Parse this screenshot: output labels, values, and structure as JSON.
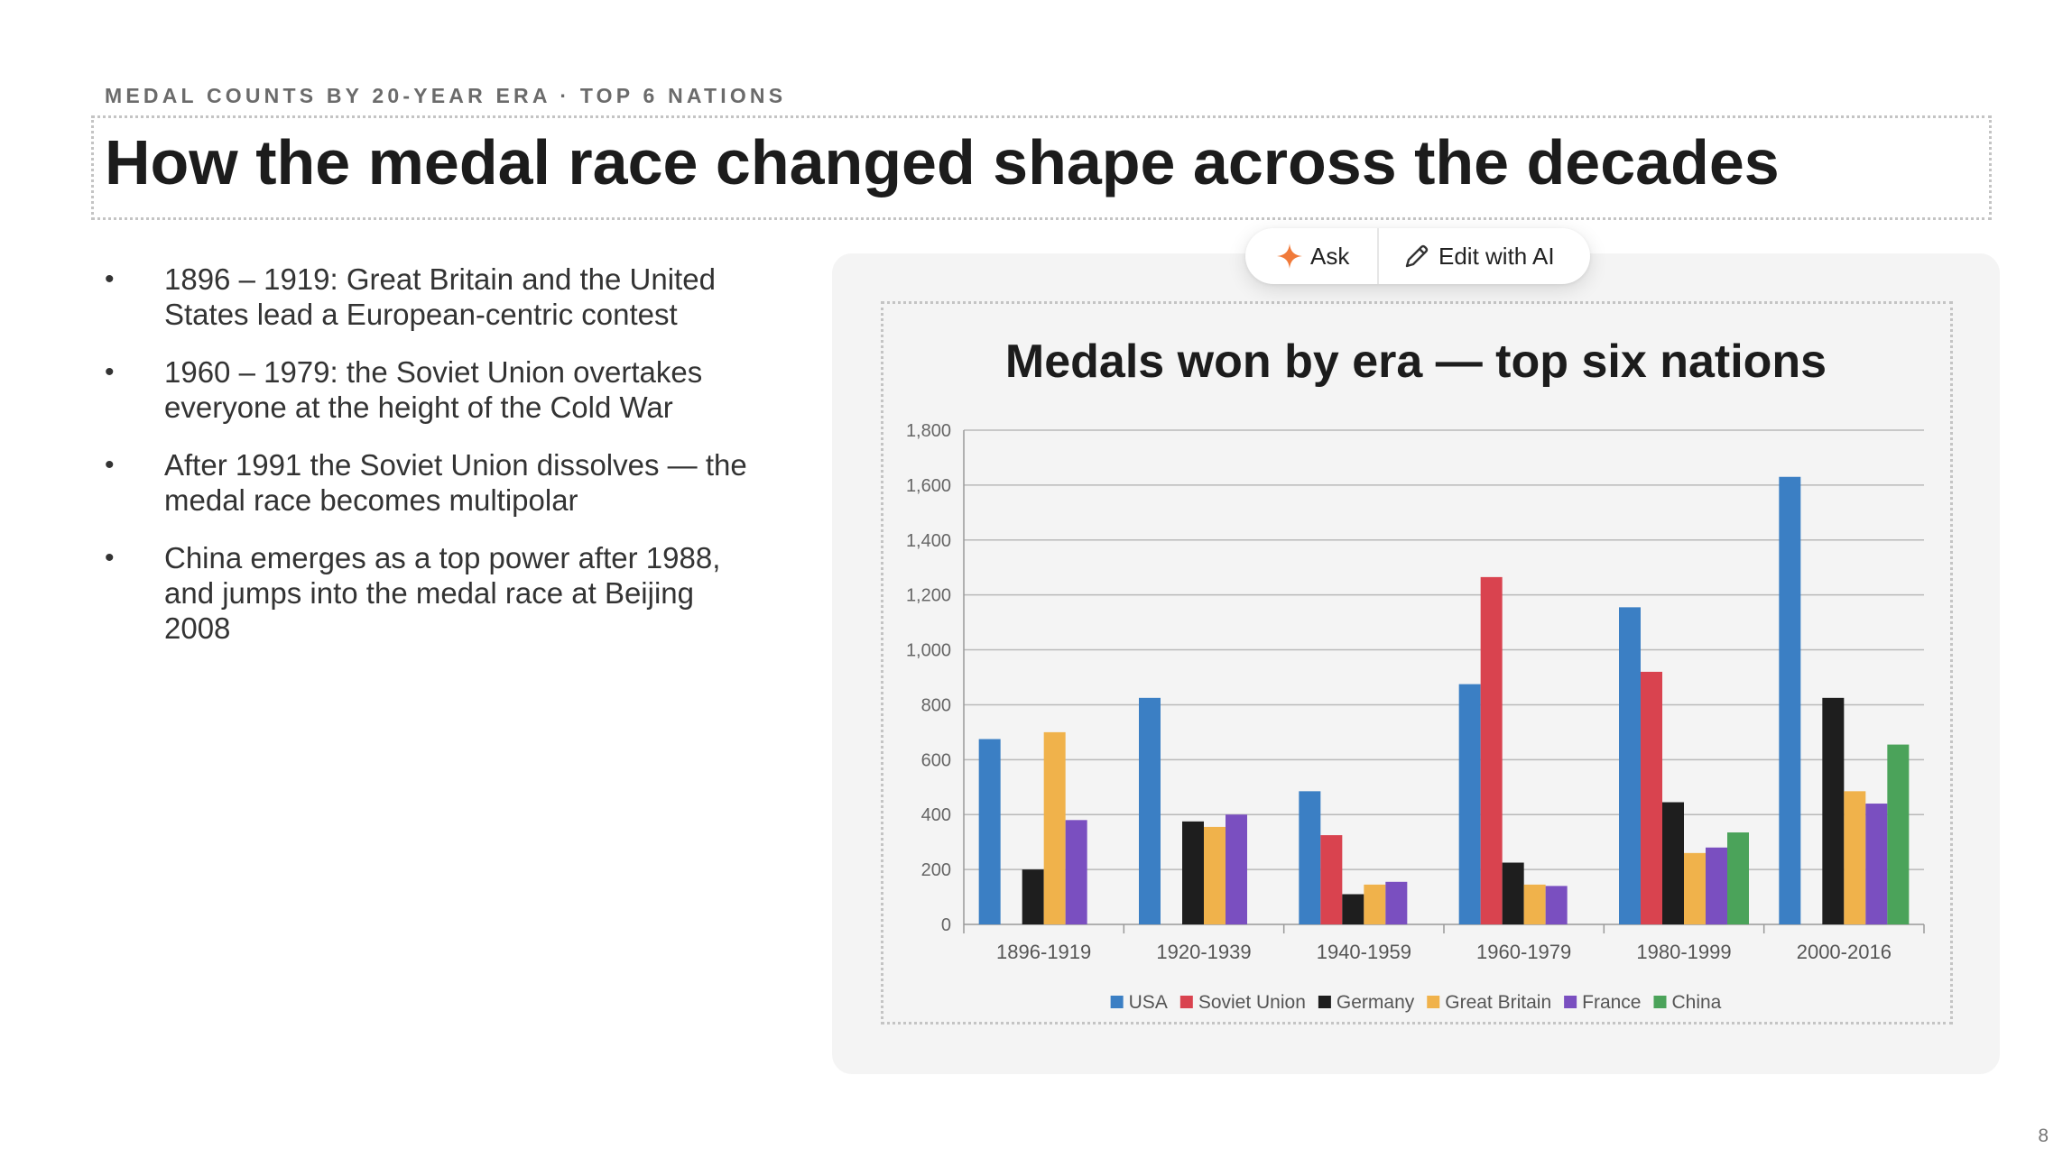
{
  "slide": {
    "kicker": "MEDAL COUNTS BY 20-YEAR ERA · TOP 6 NATIONS",
    "title": "How the medal race changed shape across the decades",
    "page_number": "8",
    "bullets": [
      "1896 – 1919: Great Britain and the United States lead a European-centric contest",
      "1960 – 1979: the Soviet Union overtakes everyone at the height of the Cold War",
      "After 1991 the Soviet Union dissolves — the medal race becomes multipolar",
      "China emerges as a top power after 1988, and jumps into the medal race at Beijing 2008"
    ]
  },
  "toolbar": {
    "ask_label": "Ask",
    "ask_icon": "sparkle-icon",
    "edit_label": "Edit with AI",
    "edit_icon": "pencil-icon",
    "accent": "#f07a3a"
  },
  "chart_data": {
    "type": "bar",
    "title": "Medals won by era — top six nations",
    "xlabel": "",
    "ylabel": "",
    "ylim": [
      0,
      1800
    ],
    "yticks": [
      0,
      200,
      400,
      600,
      800,
      1000,
      1200,
      1400,
      1600,
      1800
    ],
    "ytick_labels": [
      "0",
      "200",
      "400",
      "600",
      "800",
      "1,000",
      "1,200",
      "1,400",
      "1,600",
      "1,800"
    ],
    "grid": true,
    "legend_position": "bottom",
    "categories": [
      "1896-1919",
      "1920-1939",
      "1940-1959",
      "1960-1979",
      "1980-1999",
      "2000-2016"
    ],
    "series": [
      {
        "name": "USA",
        "color": "#3b7fc4",
        "values": [
          675,
          825,
          485,
          875,
          1155,
          1630
        ]
      },
      {
        "name": "Soviet Union",
        "color": "#d9434f",
        "values": [
          0,
          0,
          325,
          1265,
          920,
          0
        ]
      },
      {
        "name": "Germany",
        "color": "#1e1e1e",
        "values": [
          200,
          375,
          110,
          225,
          445,
          825
        ]
      },
      {
        "name": "Great Britain",
        "color": "#f0b24b",
        "values": [
          700,
          355,
          145,
          145,
          260,
          485
        ]
      },
      {
        "name": "France",
        "color": "#7a4fc0",
        "values": [
          380,
          400,
          155,
          140,
          280,
          440
        ]
      },
      {
        "name": "China",
        "color": "#4ba35a",
        "values": [
          0,
          0,
          0,
          0,
          335,
          655
        ]
      }
    ]
  }
}
